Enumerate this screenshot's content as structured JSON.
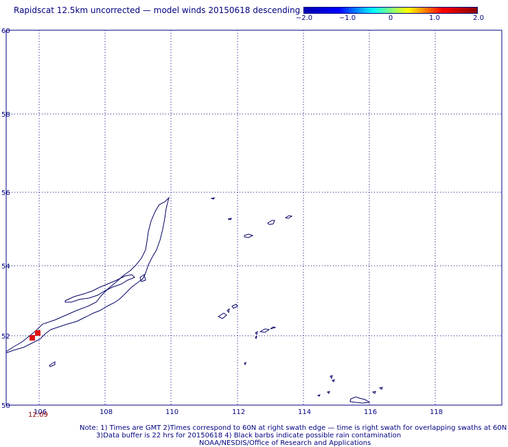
{
  "title": "Rapidscat 12.5km uncorrected — model winds 20150618 descending",
  "colorbar": {
    "ticks": [
      "−2.0",
      "−1.0",
      "0",
      "1.0",
      "2.0"
    ],
    "stops": [
      "#0000b0",
      "#0000ff",
      "#00ffff",
      "#ffff00",
      "#ff0000",
      "#8b0000"
    ]
  },
  "map": {
    "lat_labels": [
      "60",
      "58",
      "56",
      "54",
      "52",
      "50"
    ],
    "lon_labels": [
      "106",
      "108",
      "110",
      "112",
      "114",
      "116",
      "118"
    ],
    "coast_color": "#000066",
    "grid_color": "#000080",
    "wind_color": "#dd1111"
  },
  "time_label": "12:09",
  "notes": {
    "line1": "Note: 1) Times are GMT 2)Times correspond to 60N at right swath edge — time is right swath for overlapping swaths at 60N",
    "line2": "3)Data buffer is 22 hrs for 20150618 4) Black barbs indicate possible rain contamination",
    "line3": "NOAA/NESDIS/Office of Research and Applications"
  }
}
